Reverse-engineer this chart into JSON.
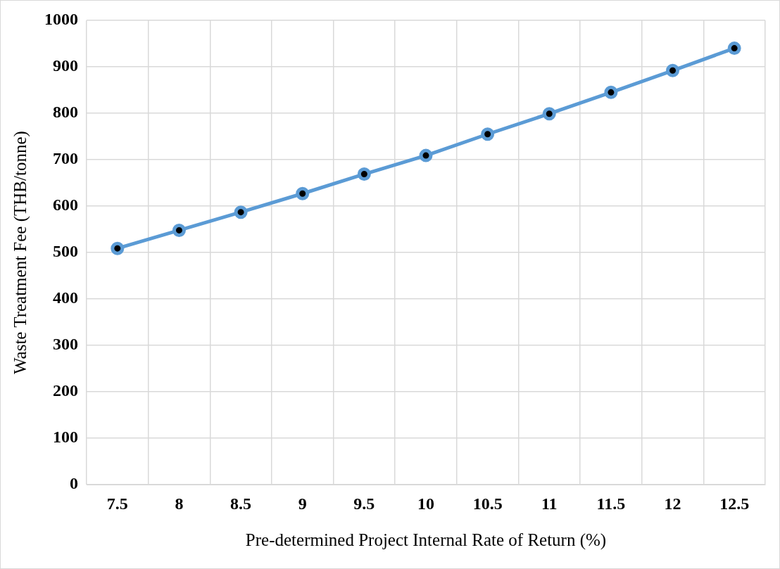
{
  "chart_data": {
    "type": "line",
    "xlabel": "Pre-determined Project Internal Rate of Return (%)",
    "ylabel": "Waste Treatment Fee (THB/tonne)",
    "categories": [
      "7.5",
      "8",
      "8.5",
      "9",
      "9.5",
      "10",
      "10.5",
      "11",
      "11.5",
      "12",
      "12.5"
    ],
    "series": [
      {
        "color": "#5b9bd5",
        "values": [
          509,
          548,
          587,
          627,
          669,
          709,
          755,
          799,
          845,
          892,
          940
        ]
      }
    ],
    "ylim": [
      0,
      1000
    ],
    "yticks": [
      0,
      100,
      200,
      300,
      400,
      500,
      600,
      700,
      800,
      900,
      1000
    ],
    "grid": true,
    "legend": false,
    "marker": "circle",
    "line_style": "solid"
  }
}
